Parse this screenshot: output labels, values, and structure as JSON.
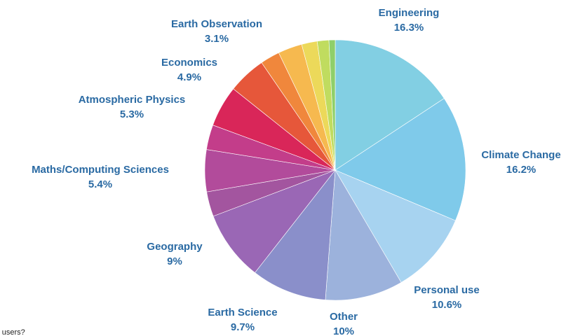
{
  "page": {
    "cut_text": "r users?"
  },
  "chart_data": {
    "type": "pie",
    "start_angle_deg": 0,
    "direction": "clockwise",
    "slices": [
      {
        "label": "Engineering",
        "value_label": "16.3%",
        "value": 16.3,
        "color": "#82cfe3"
      },
      {
        "label": "Climate Change",
        "value_label": "16.2%",
        "value": 16.2,
        "color": "#7fcaea"
      },
      {
        "label": "Personal use",
        "value_label": "10.6%",
        "value": 10.6,
        "color": "#a7d3f0"
      },
      {
        "label": "Other",
        "value_label": "10%",
        "value": 10.0,
        "color": "#9cb2dc"
      },
      {
        "label": "Earth Science",
        "value_label": "9.7%",
        "value": 9.7,
        "color": "#8a8fca"
      },
      {
        "label": "Geography",
        "value_label": "9%",
        "value": 9.0,
        "color": "#9a67b5"
      },
      {
        "label": "",
        "value_label": "",
        "value": 3.2,
        "color": "#a3559f"
      },
      {
        "label": "Maths/Computing Sciences",
        "value_label": "5.4%",
        "value": 5.4,
        "color": "#b24b9b"
      },
      {
        "label": "",
        "value_label": "",
        "value": 3.2,
        "color": "#c33d8a"
      },
      {
        "label": "Atmospheric Physics",
        "value_label": "5.3%",
        "value": 5.3,
        "color": "#d92659"
      },
      {
        "label": "Economics",
        "value_label": "4.9%",
        "value": 4.9,
        "color": "#e6573a"
      },
      {
        "label": "",
        "value_label": "",
        "value": 2.5,
        "color": "#f0873c"
      },
      {
        "label": "Earth Observation",
        "value_label": "3.1%",
        "value": 3.1,
        "color": "#f6b94f"
      },
      {
        "label": "",
        "value_label": "",
        "value": 2.0,
        "color": "#ecd95a"
      },
      {
        "label": "",
        "value_label": "",
        "value": 1.5,
        "color": "#c0dc5f"
      },
      {
        "label": "",
        "value_label": "",
        "value": 0.8,
        "color": "#8fcf6a"
      }
    ]
  }
}
